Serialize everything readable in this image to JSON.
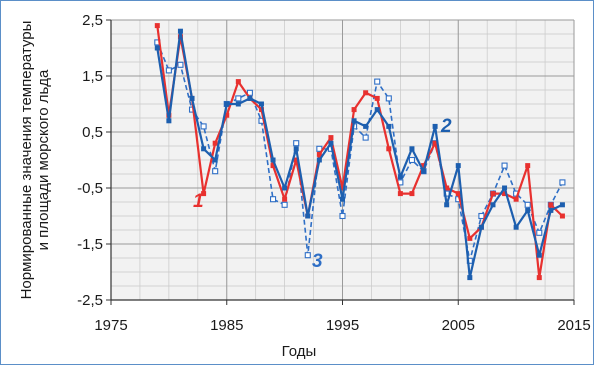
{
  "chart_data": {
    "type": "line",
    "xlabel": "Годы",
    "ylabel_lines": [
      "Нормированные значения температуры",
      "и площади морского льда"
    ],
    "xlim": [
      1975,
      2015
    ],
    "ylim": [
      -2.5,
      2.5
    ],
    "x_ticks": [
      1975,
      1985,
      1995,
      2005,
      2015
    ],
    "x_tick_labels": [
      "1975",
      "1985",
      "1995",
      "2005",
      "2015"
    ],
    "y_ticks": [
      2.5,
      1.5,
      0.5,
      -0.5,
      -1.5,
      -2.5
    ],
    "y_tick_labels": [
      "2,5",
      "1,5",
      "0,5",
      "-0,5",
      "-1,5",
      "-2,5"
    ],
    "grid": true,
    "x": [
      1979,
      1980,
      1981,
      1982,
      1983,
      1984,
      1985,
      1986,
      1987,
      1988,
      1989,
      1990,
      1991,
      1992,
      1993,
      1994,
      1995,
      1996,
      1997,
      1998,
      1999,
      2000,
      2001,
      2002,
      2003,
      2004,
      2005,
      2006,
      2007,
      2008,
      2009,
      2010,
      2011,
      2012,
      2013,
      2014
    ],
    "series": [
      {
        "name": "1",
        "color": "#e8312f",
        "style": "solid",
        "marker": "square",
        "values": [
          2.4,
          0.8,
          2.2,
          1.1,
          -0.6,
          0.3,
          0.8,
          1.4,
          1.1,
          0.9,
          -0.1,
          -0.7,
          0.0,
          -1.0,
          0.1,
          0.4,
          -0.5,
          0.9,
          1.2,
          1.1,
          0.2,
          -0.6,
          -0.6,
          -0.1,
          0.3,
          -0.5,
          -0.6,
          -1.4,
          -1.2,
          -0.6,
          -0.6,
          -0.7,
          -0.1,
          -2.1,
          -0.8,
          -1.0
        ]
      },
      {
        "name": "2",
        "color": "#1d5faf",
        "style": "solid",
        "marker": "square",
        "values": [
          2.0,
          0.7,
          2.3,
          1.1,
          0.2,
          0.0,
          1.0,
          1.0,
          1.1,
          1.0,
          0.0,
          -0.5,
          0.2,
          -1.0,
          0.0,
          0.3,
          -0.7,
          0.7,
          0.6,
          0.9,
          0.6,
          -0.3,
          0.2,
          -0.2,
          0.6,
          -0.8,
          -0.1,
          -2.1,
          -1.2,
          -0.8,
          -0.5,
          -1.2,
          -0.9,
          -1.7,
          -0.9,
          -0.8
        ]
      },
      {
        "name": "3",
        "color": "#2f6fc6",
        "style": "dashed",
        "marker": "open-square",
        "values": [
          2.1,
          1.6,
          1.7,
          0.9,
          0.6,
          -0.2,
          1.0,
          1.1,
          1.2,
          0.7,
          -0.7,
          -0.8,
          0.3,
          -1.7,
          0.2,
          0.2,
          -1.0,
          0.6,
          0.4,
          1.4,
          1.1,
          -0.4,
          0.0,
          -0.2,
          0.3,
          -0.6,
          -0.7,
          -1.8,
          -1.0,
          -0.6,
          -0.1,
          -0.6,
          -0.8,
          -1.3,
          -0.8,
          -0.4
        ]
      }
    ]
  }
}
